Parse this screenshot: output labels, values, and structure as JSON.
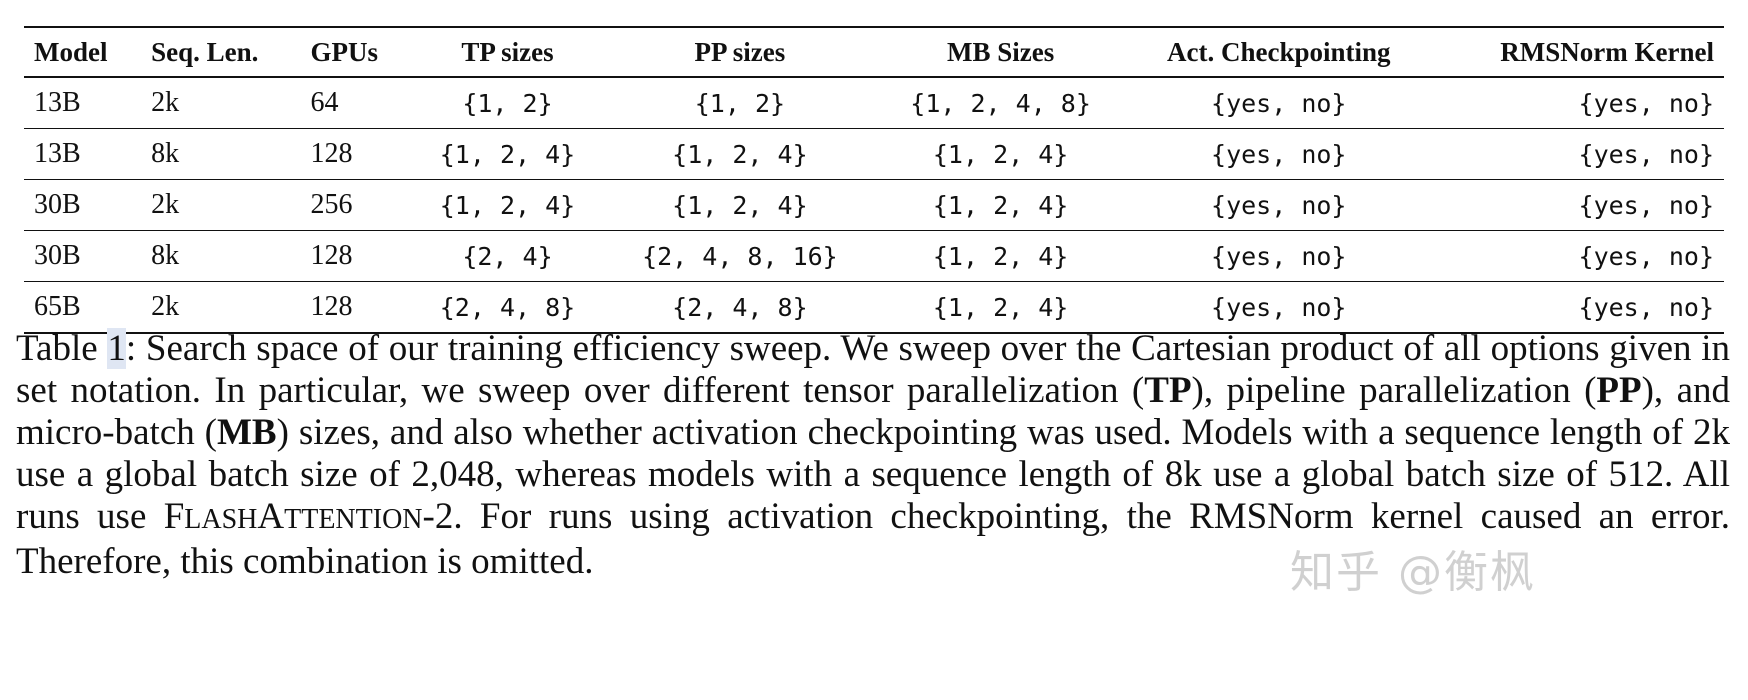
{
  "table": {
    "headers": [
      "Model",
      "Seq. Len.",
      "GPUs",
      "TP sizes",
      "PP sizes",
      "MB Sizes",
      "Act. Checkpointing",
      "RMSNorm Kernel"
    ],
    "rows": [
      [
        "13B",
        "2k",
        "64",
        "{1, 2}",
        "{1, 2}",
        "{1, 2, 4, 8}",
        "{yes, no}",
        "{yes, no}"
      ],
      [
        "13B",
        "8k",
        "128",
        "{1, 2, 4}",
        "{1, 2, 4}",
        "{1, 2, 4}",
        "{yes, no}",
        "{yes, no}"
      ],
      [
        "30B",
        "2k",
        "256",
        "{1, 2, 4}",
        "{1, 2, 4}",
        "{1, 2, 4}",
        "{yes, no}",
        "{yes, no}"
      ],
      [
        "30B",
        "8k",
        "128",
        "{2, 4}",
        "{2, 4, 8, 16}",
        "{1, 2, 4}",
        "{yes, no}",
        "{yes, no}"
      ],
      [
        "65B",
        "2k",
        "128",
        "{2, 4, 8}",
        "{2, 4, 8}",
        "{1, 2, 4}",
        "{yes, no}",
        "{yes, no}"
      ]
    ]
  },
  "caption": {
    "label": "Table",
    "number": "1",
    "text1": ": Search space of our training efficiency sweep. We sweep over the Cartesian product of all options given in set notation. In particular, we sweep over different tensor parallelization (",
    "tp": "TP",
    "text2": "), pipeline parallelization (",
    "pp": "PP",
    "text3": "), and micro-batch (",
    "mb": "MB",
    "text4": ") sizes, and also whether activation checkpointing was used. Models with a sequence length of 2k use a global batch size of 2,048, whereas models with a sequence length of 8k use a global batch size of 512. All runs use ",
    "fa_f": "F",
    "fa_lash": "LASH",
    "fa_a": "A",
    "fa_ttention": "TTENTION",
    "fa_suffix": "-2",
    "text5": ". For runs using activation checkpointing, the RMSNorm kernel caused an error. Therefore, this combination is omitted."
  },
  "watermark": "知乎 @衡枫",
  "colors": {
    "highlight": "#dfe6f3",
    "text": "#111111"
  }
}
